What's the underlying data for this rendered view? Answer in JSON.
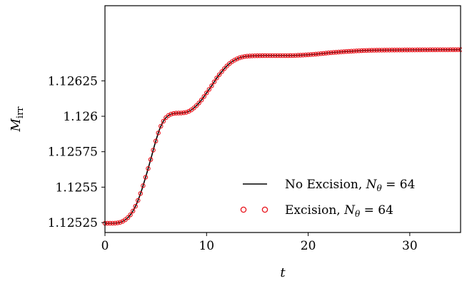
{
  "chart_data": {
    "type": "line",
    "xlabel": "t",
    "ylabel": {
      "main": "M",
      "sub": "irr"
    },
    "xlim": [
      0,
      35
    ],
    "ylim": [
      1.12518,
      1.12678
    ],
    "x_ticks": [
      0,
      10,
      20,
      30
    ],
    "x_tick_labels": [
      "0",
      "10",
      "20",
      "30"
    ],
    "y_ticks": [
      1.12525,
      1.1255,
      1.12575,
      1.126,
      1.12625
    ],
    "y_tick_labels": [
      "1.12525",
      "1.1255",
      "1.12575",
      "1.126",
      "1.12625"
    ],
    "grid": false,
    "legend": {
      "placement": "lower-right",
      "entries": [
        {
          "label": "No Excision, ",
          "math": {
            "var": "N",
            "sub": "θ",
            "rest": " = 64"
          },
          "style": "line",
          "color": "#000000"
        },
        {
          "label": "Excision, ",
          "math": {
            "var": "N",
            "sub": "θ",
            "rest": " = 64"
          },
          "style": "open-circle",
          "color": "#e8121a"
        }
      ]
    },
    "series": [
      {
        "style": "line",
        "color": "#000000",
        "x": [
          0,
          1,
          1.5,
          2,
          2.5,
          3,
          3.5,
          4,
          4.5,
          5,
          5.5,
          6,
          6.5,
          7,
          7.5,
          8,
          8.5,
          9,
          9.5,
          10,
          10.5,
          11,
          11.5,
          12,
          12.5,
          13,
          13.5,
          14,
          15,
          16,
          17,
          18,
          19,
          20,
          21,
          22,
          23,
          24,
          25,
          26,
          28,
          30,
          32,
          35
        ],
        "y": [
          1.125245,
          1.125246,
          1.125252,
          1.12527,
          1.125305,
          1.125365,
          1.125455,
          1.12557,
          1.125695,
          1.125825,
          1.12593,
          1.12599,
          1.126015,
          1.126022,
          1.126023,
          1.126028,
          1.126045,
          1.126075,
          1.126115,
          1.126165,
          1.126215,
          1.12627,
          1.126315,
          1.126355,
          1.126385,
          1.126405,
          1.126418,
          1.126424,
          1.126427,
          1.126428,
          1.126428,
          1.126428,
          1.12643,
          1.126434,
          1.12644,
          1.126447,
          1.126453,
          1.126458,
          1.126462,
          1.126465,
          1.126467,
          1.126468,
          1.126469,
          1.12647
        ]
      },
      {
        "style": "open-circle",
        "color": "#e8121a",
        "x": [
          0,
          1,
          1.5,
          2,
          2.5,
          3,
          3.5,
          4,
          4.5,
          5,
          5.5,
          6,
          6.5,
          7,
          7.5,
          8,
          8.5,
          9,
          9.5,
          10,
          10.5,
          11,
          11.5,
          12,
          12.5,
          13,
          13.5,
          14,
          15,
          16,
          17,
          18,
          19,
          20,
          21,
          22,
          23,
          24,
          25,
          26,
          28,
          30,
          32,
          35
        ],
        "y": [
          1.125245,
          1.125246,
          1.125252,
          1.12527,
          1.125305,
          1.125365,
          1.125455,
          1.12557,
          1.125695,
          1.125825,
          1.12593,
          1.12599,
          1.126015,
          1.126022,
          1.126023,
          1.126028,
          1.126045,
          1.126075,
          1.126115,
          1.126165,
          1.126215,
          1.12627,
          1.126315,
          1.126355,
          1.126385,
          1.126405,
          1.126418,
          1.126424,
          1.126427,
          1.126428,
          1.126428,
          1.126428,
          1.12643,
          1.126434,
          1.12644,
          1.126447,
          1.126453,
          1.126458,
          1.126462,
          1.126465,
          1.126467,
          1.126468,
          1.126469,
          1.12647
        ]
      }
    ]
  }
}
